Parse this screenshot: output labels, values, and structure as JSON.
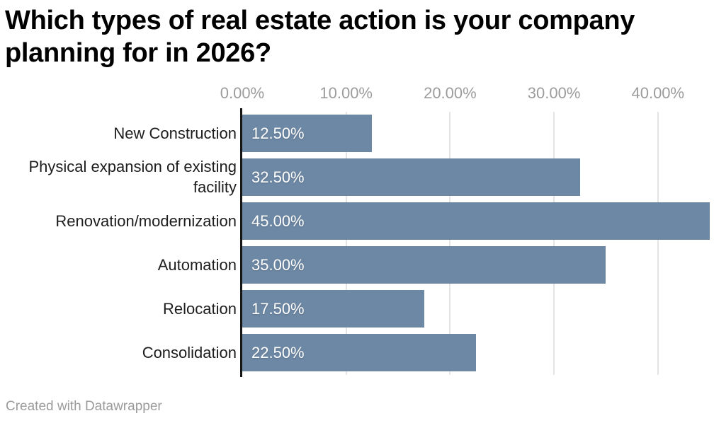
{
  "title": {
    "text": "Which types of real estate action is your company planning for in 2026?",
    "lines": [
      "Which types of real estate action is your company",
      "planning for in 2026?"
    ]
  },
  "footer": {
    "text": "Created with Datawrapper"
  },
  "colors": {
    "bar": "#6d88a5",
    "axis_line": "#161616",
    "gridline": "#e4e4e4",
    "tick_text": "#9c9c9c",
    "label_text": "#1d1d1d",
    "value_text": "#ffffff",
    "title_text": "#000000",
    "footer_text": "#9b9b9b",
    "background": "#ffffff"
  },
  "chart_data": {
    "type": "bar",
    "orientation": "horizontal",
    "title": "Which types of real estate action is your company planning for in 2026?",
    "categories": [
      "New Construction",
      "Physical expansion of existing facility",
      "Renovation/modernization",
      "Automation",
      "Relocation",
      "Consolidation"
    ],
    "values": [
      12.5,
      32.5,
      45.0,
      35.0,
      17.5,
      22.5
    ],
    "value_labels": [
      "12.50%",
      "32.50%",
      "45.00%",
      "35.00%",
      "17.50%",
      "22.50%"
    ],
    "x_ticks": [
      {
        "value": 0,
        "label": "0.00%"
      },
      {
        "value": 10,
        "label": "10.00%"
      },
      {
        "value": 20,
        "label": "20.00%"
      },
      {
        "value": 30,
        "label": "30.00%"
      },
      {
        "value": 40,
        "label": "40.00%"
      }
    ],
    "xlabel": "",
    "ylabel": "",
    "xlim": [
      0,
      45.4
    ],
    "grid": true,
    "legend": "none",
    "attribution": "Created with Datawrapper"
  }
}
